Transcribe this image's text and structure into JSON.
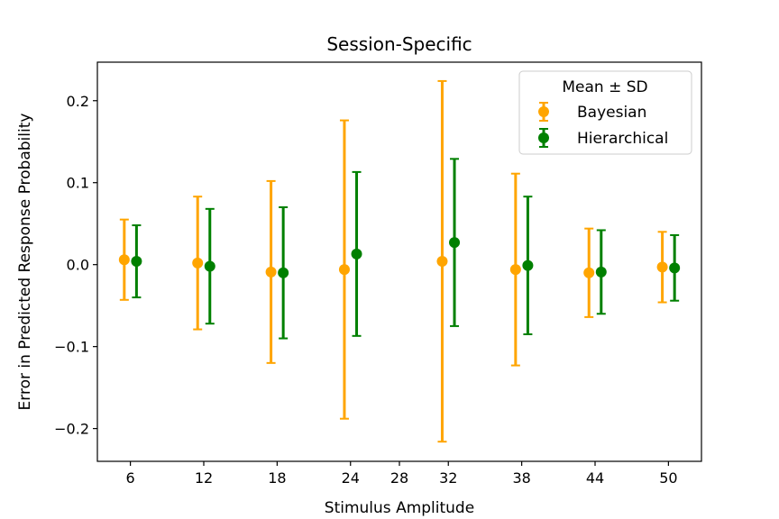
{
  "chart_data": {
    "type": "errorbar",
    "title": "Session-Specific",
    "xlabel": "Stimulus Amplitude",
    "ylabel": "Error in Predicted Response Probability",
    "x_ticks": [
      "6",
      "12",
      "18",
      "24",
      "28",
      "32",
      "38",
      "44",
      "50"
    ],
    "x_tick_values": [
      6,
      12,
      18,
      24,
      28,
      32,
      38,
      44,
      50
    ],
    "y_ticks": [
      "−0.2",
      "−0.1",
      "0.0",
      "0.1",
      "0.2"
    ],
    "y_tick_values": [
      -0.2,
      -0.1,
      0.0,
      0.1,
      0.2
    ],
    "xlim": [
      3.3,
      52.7
    ],
    "ylim": [
      -0.24,
      0.247
    ],
    "grid": false,
    "legend": {
      "title": "Mean ± SD",
      "placement": "upper right"
    },
    "series": [
      {
        "name": "Bayesian",
        "color": "#ffa500",
        "x": [
          5.5,
          11.5,
          17.5,
          23.5,
          31.5,
          37.5,
          43.5,
          49.5
        ],
        "mean": [
          0.006,
          0.002,
          -0.009,
          -0.006,
          0.004,
          -0.006,
          -0.01,
          -0.003
        ],
        "sd": [
          0.049,
          0.081,
          0.111,
          0.182,
          0.22,
          0.117,
          0.054,
          0.043
        ]
      },
      {
        "name": "Hierarchical",
        "color": "#008000",
        "x": [
          6.5,
          12.5,
          18.5,
          24.5,
          32.5,
          38.5,
          44.5,
          50.5
        ],
        "mean": [
          0.004,
          -0.002,
          -0.01,
          0.013,
          0.027,
          -0.001,
          -0.009,
          -0.004
        ],
        "sd": [
          0.044,
          0.07,
          0.08,
          0.1,
          0.102,
          0.084,
          0.051,
          0.04
        ]
      }
    ]
  }
}
